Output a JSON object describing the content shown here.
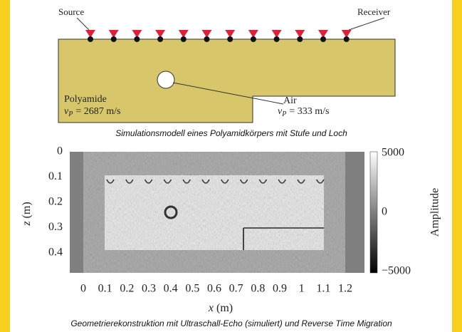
{
  "model": {
    "source_label": "Source",
    "receiver_label": "Receiver",
    "material": {
      "name": "Polyamide",
      "symbol": "v",
      "subscript": "P",
      "velocity": "= 2687 m/s"
    },
    "inclusion": {
      "name": "Air",
      "symbol": "v",
      "subscript": "P",
      "velocity": "= 333 m/s"
    },
    "caption": "Simulationsmodell eines Polyamidkörpers mit Stufe und Loch"
  },
  "reconstruction": {
    "x_label": "x",
    "x_unit": "(m)",
    "z_label": "z",
    "z_unit": "(m)",
    "xlim": [
      0,
      1.2
    ],
    "xticks": [
      0,
      0.1,
      0.2,
      0.3,
      0.4,
      0.5,
      0.6,
      0.7,
      0.8,
      0.9,
      1,
      1.1,
      1.2
    ],
    "zlim": [
      0,
      0.4
    ],
    "zticks": [
      0,
      0.1,
      0.2,
      0.3,
      0.4
    ],
    "colorbar_label": "Amplitude",
    "colorbar_lim": [
      -5000,
      5000
    ],
    "colorbar_ticks": [
      5000,
      0,
      {
        "value": -5000,
        "label": "−5000"
      }
    ],
    "caption": "Geometrierekonstruktion mit Ultraschall-Echo (simuliert) und Reverse Time Migration"
  }
}
